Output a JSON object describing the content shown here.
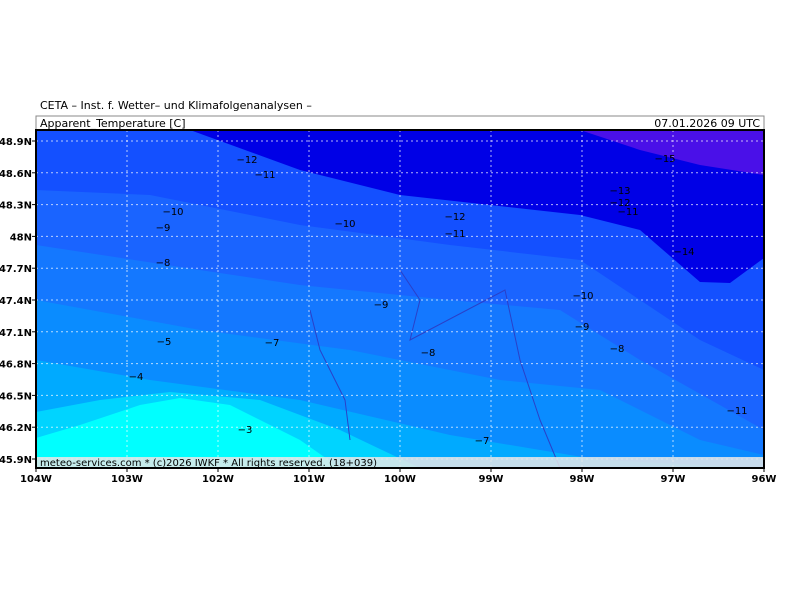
{
  "header": "CETA – Inst. f. Wetter– und Klimafolgenanalysen –",
  "title": "Apparent_Temperature [C]",
  "timestamp": "07.01.2026 09 UTC",
  "footer": "meteo-services.com * (c)2026 IWKF * All rights reserved. (18+039)",
  "lon_ticks": [
    "104W",
    "103W",
    "102W",
    "101W",
    "100W",
    "99W",
    "98W",
    "97W",
    "96W"
  ],
  "lat_ticks": [
    "48.9N",
    "48.6N",
    "48.3N",
    "48N",
    "47.7N",
    "47.4N",
    "47.1N",
    "46.8N",
    "46.5N",
    "46.2N",
    "45.9N"
  ],
  "contour_labels": [
    "−12",
    "−11",
    "−10",
    "−9",
    "−8",
    "−10",
    "−12",
    "−11",
    "−9",
    "−10",
    "−9",
    "−8",
    "−8",
    "−7",
    "−5",
    "−4",
    "−3",
    "−7",
    "−15",
    "−13",
    "−12",
    "−11",
    "−14",
    "−11"
  ]
}
